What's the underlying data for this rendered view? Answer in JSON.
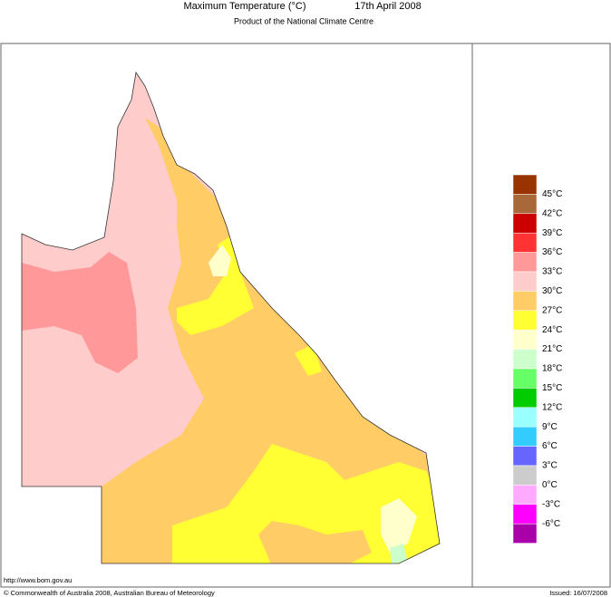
{
  "header": {
    "title": "Maximum Temperature (°C)",
    "date": "17th April 2008",
    "subtitle": "Product of the National Climate Centre"
  },
  "legend": {
    "colors": [
      "#993300",
      "#a8683a",
      "#cc0000",
      "#ff3333",
      "#ff9999",
      "#ffcccc",
      "#ffcc66",
      "#ffff33",
      "#ffffcc",
      "#ccffcc",
      "#66ff66",
      "#00cc00",
      "#99ffff",
      "#33ccff",
      "#6666ff",
      "#cccccc",
      "#ffaaff",
      "#ff00ff",
      "#aa00aa"
    ],
    "labels": [
      "45°C",
      "42°C",
      "39°C",
      "36°C",
      "33°C",
      "30°C",
      "27°C",
      "24°C",
      "21°C",
      "18°C",
      "15°C",
      "12°C",
      "9°C",
      "6°C",
      "3°C",
      "0°C",
      "-3°C",
      "-6°C"
    ]
  },
  "footer": {
    "url": "http://www.bom.gov.au",
    "copyright": "© Commonwealth of Australia 2008, Australian Bureau of Meteorology",
    "issued": "Issued: 16/07/2008"
  }
}
